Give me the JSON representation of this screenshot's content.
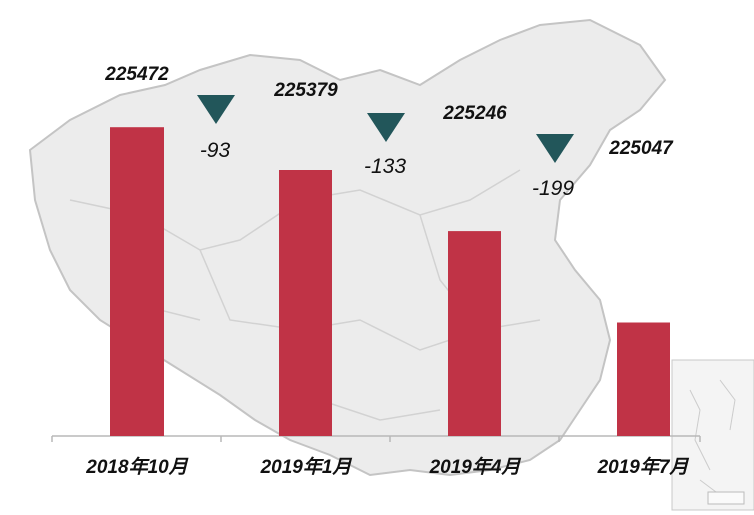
{
  "chart_data": {
    "type": "bar",
    "categories": [
      "2018年10月",
      "2019年1月",
      "2019年4月",
      "2019年7月"
    ],
    "values": [
      225472,
      225379,
      225246,
      225047
    ],
    "changes": [
      -93,
      -133,
      -199
    ],
    "ylim": [
      224800,
      225540
    ],
    "grid": false,
    "legend": "none",
    "background": "faded grayscale map of China"
  },
  "colors": {
    "bar": "#c03346",
    "down_marker": "#22565a",
    "axis": "#b8b8b8"
  },
  "icons": {
    "down_marker": "down-triangle-icon",
    "background": "china-map-image"
  }
}
